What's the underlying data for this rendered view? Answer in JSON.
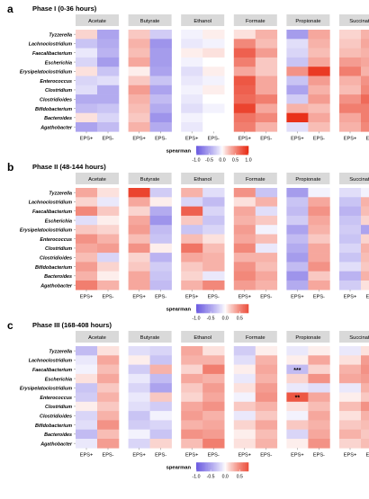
{
  "figure": {
    "legend_title": "spearman"
  },
  "chart_data": [
    {
      "type": "heatmap",
      "panel_letter": "a",
      "title": "Phase I (0-36 hours)",
      "rows": [
        "Tyzzerella",
        "Lachnoclostridium",
        "Faecalibacterium",
        "Escherichia",
        "Erysipelatoclostridium",
        "Enterococcus",
        "Clostridium",
        "Clostridioides",
        "Bifidobacterium",
        "Bacteroides",
        "Agathobacter"
      ],
      "facets": [
        "Acetate",
        "Butyrate",
        "Ethanol",
        "Formate",
        "Propionate",
        "Succinate"
      ],
      "columns": [
        "EPS+",
        "EPS-"
      ],
      "values": [
        [
          [
            0.15,
            -0.5
          ],
          [
            0.2,
            -0.25
          ],
          [
            -0.05,
            0.05
          ],
          [
            0.1,
            0.3
          ],
          [
            -0.55,
            0.35
          ],
          [
            0.15,
            0.3
          ]
        ],
        [
          [
            -0.3,
            -0.45
          ],
          [
            0.3,
            -0.6
          ],
          [
            -0.1,
            -0.05
          ],
          [
            0.5,
            0.25
          ],
          [
            -0.15,
            0.3
          ],
          [
            0.2,
            0.35
          ]
        ],
        [
          [
            -0.1,
            -0.4
          ],
          [
            0.25,
            -0.55
          ],
          [
            0.05,
            0.1
          ],
          [
            0.7,
            0.4
          ],
          [
            -0.2,
            0.25
          ],
          [
            0.25,
            0.3
          ]
        ],
        [
          [
            -0.2,
            -0.55
          ],
          [
            0.35,
            -0.55
          ],
          [
            -0.05,
            0.0
          ],
          [
            0.55,
            0.2
          ],
          [
            -0.3,
            0.35
          ],
          [
            0.4,
            0.35
          ]
        ],
        [
          [
            0.1,
            -0.3
          ],
          [
            0.05,
            -0.5
          ],
          [
            -0.15,
            0.05
          ],
          [
            0.35,
            0.2
          ],
          [
            0.45,
            0.9
          ],
          [
            0.55,
            0.3
          ]
        ],
        [
          [
            -0.2,
            -0.15
          ],
          [
            0.2,
            -0.3
          ],
          [
            -0.1,
            -0.05
          ],
          [
            0.75,
            0.35
          ],
          [
            -0.3,
            0.4
          ],
          [
            0.3,
            0.45
          ]
        ],
        [
          [
            -0.15,
            -0.45
          ],
          [
            0.4,
            -0.5
          ],
          [
            -0.05,
            0.05
          ],
          [
            0.7,
            0.35
          ],
          [
            -0.5,
            0.3
          ],
          [
            0.25,
            0.5
          ]
        ],
        [
          [
            -0.45,
            -0.45
          ],
          [
            0.3,
            -0.35
          ],
          [
            -0.1,
            0.0
          ],
          [
            0.65,
            0.55
          ],
          [
            -0.25,
            0.4
          ],
          [
            0.45,
            0.65
          ]
        ],
        [
          [
            -0.35,
            -0.3
          ],
          [
            0.25,
            -0.45
          ],
          [
            -0.15,
            -0.05
          ],
          [
            0.85,
            0.35
          ],
          [
            0.3,
            0.25
          ],
          [
            0.55,
            0.55
          ]
        ],
        [
          [
            0.1,
            -0.2
          ],
          [
            0.2,
            -0.6
          ],
          [
            -0.05,
            0.0
          ],
          [
            0.6,
            0.5
          ],
          [
            0.95,
            0.35
          ],
          [
            0.35,
            0.55
          ]
        ],
        [
          [
            -0.5,
            -0.35
          ],
          [
            0.3,
            -0.45
          ],
          [
            -0.1,
            0.0
          ],
          [
            0.55,
            0.3
          ],
          [
            -0.15,
            0.25
          ],
          [
            0.3,
            0.5
          ]
        ]
      ],
      "annotations": [],
      "xlabel": "",
      "ylabel": "",
      "legend": {
        "title": "spearman",
        "ticks": [
          "-1.0",
          "-0.5",
          "0.0",
          "0.5",
          "1.0"
        ],
        "range": [
          -1.0,
          1.0
        ]
      }
    },
    {
      "type": "heatmap",
      "panel_letter": "b",
      "title": "Phase II (48-144 hours)",
      "rows": [
        "Tyzzerella",
        "Lachnoclostridium",
        "Faecalibacterium",
        "Escherichia",
        "Erysipelatoclostridium",
        "Enterococcus",
        "Clostridium",
        "Clostridioides",
        "Bifidobacterium",
        "Bacteroides",
        "Agathobacter"
      ],
      "facets": [
        "Acetate",
        "Butyrate",
        "Ethanol",
        "Formate",
        "Propionate",
        "Succinate"
      ],
      "columns": [
        "EPS+",
        "EPS-"
      ],
      "values": [
        [
          [
            0.35,
            0.1
          ],
          [
            0.85,
            -0.25
          ],
          [
            0.3,
            -0.15
          ],
          [
            0.45,
            -0.3
          ],
          [
            -0.55,
            -0.05
          ],
          [
            -0.15,
            -0.05
          ]
        ],
        [
          [
            0.15,
            -0.1
          ],
          [
            0.35,
            0.05
          ],
          [
            -0.2,
            -0.35
          ],
          [
            0.1,
            0.3
          ],
          [
            -0.3,
            0.35
          ],
          [
            -0.3,
            0.3
          ]
        ],
        [
          [
            0.5,
            0.2
          ],
          [
            0.15,
            -0.45
          ],
          [
            0.7,
            -0.2
          ],
          [
            0.35,
            -0.15
          ],
          [
            -0.35,
            0.45
          ],
          [
            -0.4,
            0.25
          ]
        ],
        [
          [
            -0.15,
            0.05
          ],
          [
            0.35,
            -0.6
          ],
          [
            0.2,
            -0.3
          ],
          [
            0.3,
            0.2
          ],
          [
            -0.25,
            0.35
          ],
          [
            -0.3,
            0.15
          ]
        ],
        [
          [
            0.2,
            0.15
          ],
          [
            0.4,
            -0.35
          ],
          [
            -0.3,
            -0.2
          ],
          [
            0.4,
            -0.05
          ],
          [
            -0.5,
            0.3
          ],
          [
            -0.25,
            -0.5
          ]
        ],
        [
          [
            0.45,
            0.3
          ],
          [
            0.25,
            -0.3
          ],
          [
            0.25,
            0.1
          ],
          [
            0.35,
            0.25
          ],
          [
            -0.35,
            0.2
          ],
          [
            -0.3,
            0.15
          ]
        ],
        [
          [
            0.35,
            0.4
          ],
          [
            0.45,
            0.05
          ],
          [
            0.6,
            0.25
          ],
          [
            0.5,
            -0.1
          ],
          [
            -0.45,
            0.35
          ],
          [
            -0.2,
            0.3
          ]
        ],
        [
          [
            0.25,
            -0.2
          ],
          [
            0.15,
            -0.4
          ],
          [
            0.35,
            0.3
          ],
          [
            0.3,
            0.3
          ],
          [
            -0.55,
            0.35
          ],
          [
            -0.3,
            0.25
          ]
        ],
        [
          [
            0.4,
            0.15
          ],
          [
            0.2,
            -0.25
          ],
          [
            0.2,
            0.3
          ],
          [
            0.45,
            0.25
          ],
          [
            -0.35,
            0.45
          ],
          [
            -0.15,
            0.2
          ]
        ],
        [
          [
            0.3,
            0.05
          ],
          [
            0.35,
            -0.3
          ],
          [
            0.15,
            -0.1
          ],
          [
            0.5,
            0.35
          ],
          [
            -0.6,
            0.2
          ],
          [
            -0.4,
            0.3
          ]
        ],
        [
          [
            0.55,
            0.3
          ],
          [
            0.35,
            -0.35
          ],
          [
            0.3,
            0.5
          ],
          [
            0.4,
            0.3
          ],
          [
            -0.45,
            0.35
          ],
          [
            -0.25,
            0.1
          ]
        ]
      ],
      "annotations": [],
      "xlabel": "",
      "ylabel": "",
      "legend": {
        "title": "spearman",
        "ticks": [
          "-1.0",
          "-0.5",
          "0.0",
          "0.5"
        ],
        "range": [
          -1.0,
          0.8
        ]
      }
    },
    {
      "type": "heatmap",
      "panel_letter": "c",
      "title": "Phase III (168-408 hours)",
      "rows": [
        "Tyzzerella",
        "Lachnoclostridium",
        "Faecalibacterium",
        "Escherichia",
        "Erysipelatoclostridium",
        "Enterococcus",
        "Clostridium",
        "Clostridioides",
        "Bifidobacterium",
        "Bacteroides",
        "Agathobacter"
      ],
      "facets": [
        "Acetate",
        "Butyrate",
        "Ethanol",
        "Formate",
        "Propionate",
        "Succinate"
      ],
      "columns": [
        "EPS+",
        "EPS-"
      ],
      "values": [
        [
          [
            -0.35,
            0.1
          ],
          [
            -0.15,
            -0.2
          ],
          [
            0.35,
            0.1
          ],
          [
            -0.25,
            0.05
          ],
          [
            -0.1,
            0.05
          ],
          [
            -0.1,
            0.1
          ]
        ],
        [
          [
            -0.1,
            0.35
          ],
          [
            0.05,
            -0.3
          ],
          [
            0.3,
            0.3
          ],
          [
            -0.15,
            0.3
          ],
          [
            0.05,
            0.35
          ],
          [
            0.1,
            0.4
          ]
        ],
        [
          [
            -0.05,
            0.25
          ],
          [
            -0.25,
            0.3
          ],
          [
            0.15,
            0.55
          ],
          [
            0.05,
            0.35
          ],
          [
            -0.35,
            0.15
          ],
          [
            0.3,
            0.45
          ]
        ],
        [
          [
            0.1,
            0.35
          ],
          [
            -0.1,
            -0.35
          ],
          [
            0.35,
            0.3
          ],
          [
            -0.1,
            0.3
          ],
          [
            0.15,
            0.45
          ],
          [
            0.35,
            0.4
          ]
        ],
        [
          [
            -0.3,
            0.2
          ],
          [
            -0.2,
            -0.5
          ],
          [
            0.2,
            0.4
          ],
          [
            0.1,
            0.4
          ],
          [
            -0.1,
            -0.15
          ],
          [
            -0.1,
            0.3
          ]
        ],
        [
          [
            -0.25,
            0.3
          ],
          [
            -0.1,
            0.2
          ],
          [
            0.15,
            0.35
          ],
          [
            -0.05,
            0.45
          ],
          [
            0.75,
            0.35
          ],
          [
            0.05,
            0.2
          ]
        ],
        [
          [
            0.05,
            0.2
          ],
          [
            -0.15,
            -0.25
          ],
          [
            0.35,
            0.45
          ],
          [
            0.2,
            0.3
          ],
          [
            0.1,
            0.25
          ],
          [
            0.25,
            0.45
          ]
        ],
        [
          [
            -0.2,
            0.3
          ],
          [
            -0.3,
            -0.05
          ],
          [
            0.4,
            0.3
          ],
          [
            -0.1,
            0.2
          ],
          [
            -0.05,
            0.35
          ],
          [
            0.1,
            0.3
          ]
        ],
        [
          [
            -0.15,
            0.45
          ],
          [
            -0.25,
            -0.2
          ],
          [
            0.3,
            0.35
          ],
          [
            0.15,
            0.35
          ],
          [
            0.2,
            0.3
          ],
          [
            0.2,
            0.25
          ]
        ],
        [
          [
            -0.35,
            0.25
          ],
          [
            -0.05,
            -0.3
          ],
          [
            0.45,
            0.4
          ],
          [
            0.05,
            0.25
          ],
          [
            -0.2,
            0.35
          ],
          [
            0.3,
            0.2
          ]
        ],
        [
          [
            -0.1,
            0.4
          ],
          [
            -0.2,
            0.15
          ],
          [
            0.25,
            0.55
          ],
          [
            0.1,
            0.3
          ],
          [
            0.05,
            0.45
          ],
          [
            0.15,
            0.25
          ]
        ]
      ],
      "annotations": [
        {
          "row": "Faecalibacterium",
          "facet": "Propionate",
          "column": "EPS+",
          "text": "***"
        },
        {
          "row": "Enterococcus",
          "facet": "Propionate",
          "column": "EPS+",
          "text": "**"
        }
      ],
      "xlabel": "",
      "ylabel": "",
      "legend": {
        "title": "spearman",
        "ticks": [
          "-1.0",
          "-0.5",
          "0.0",
          "0.5"
        ],
        "range": [
          -1.0,
          0.8
        ]
      }
    }
  ]
}
